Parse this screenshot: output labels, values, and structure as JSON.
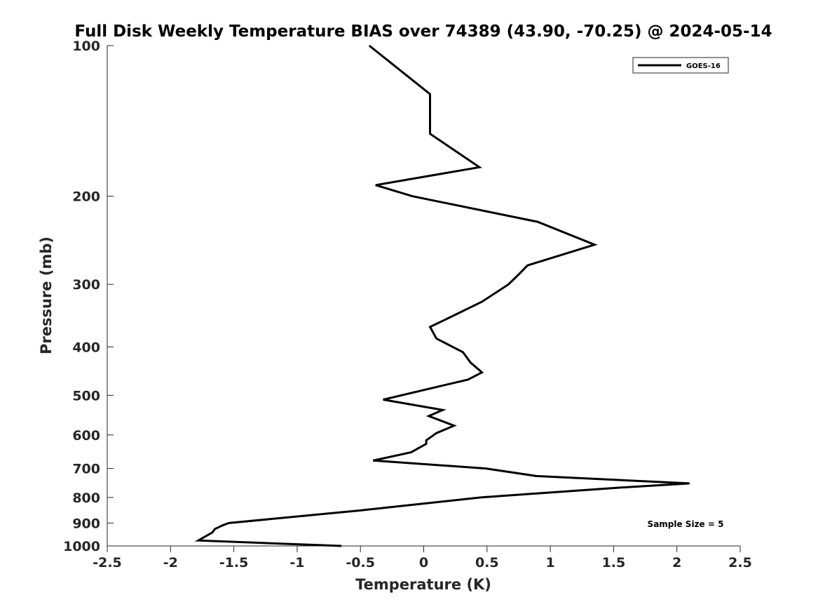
{
  "chart_data": {
    "type": "line",
    "title": "Full Disk Weekly Temperature BIAS over 74389 (43.90, -70.25) @ 2024-05-14",
    "xlabel": "Temperature (K)",
    "ylabel": "Pressure (mb)",
    "xlim": [
      -2.5,
      2.5
    ],
    "ylim": [
      100,
      1000
    ],
    "y_scale": "log",
    "y_reversed": true,
    "grid": false,
    "legend_position": "top-right",
    "xticks": [
      -2.5,
      -2,
      -1.5,
      -1,
      -0.5,
      0,
      0.5,
      1,
      1.5,
      2,
      2.5
    ],
    "xtick_labels": [
      "-2.5",
      "-2",
      "-1.5",
      "-1",
      "-0.5",
      "0",
      "0.5",
      "1",
      "1.5",
      "2",
      "2.5"
    ],
    "yticks": [
      100,
      200,
      300,
      400,
      500,
      600,
      700,
      800,
      900,
      1000
    ],
    "ytick_labels": [
      "100",
      "200",
      "300",
      "400",
      "500",
      "600",
      "700",
      "800",
      "900",
      "1000"
    ],
    "series": [
      {
        "name": "GOES-16",
        "color": "#000000",
        "points": [
          {
            "x": -0.43,
            "y": 100
          },
          {
            "x": 0.05,
            "y": 125
          },
          {
            "x": 0.05,
            "y": 150
          },
          {
            "x": 0.44,
            "y": 175
          },
          {
            "x": -0.38,
            "y": 190
          },
          {
            "x": -0.09,
            "y": 200
          },
          {
            "x": 0.9,
            "y": 225
          },
          {
            "x": 1.35,
            "y": 250
          },
          {
            "x": 0.82,
            "y": 275
          },
          {
            "x": 0.76,
            "y": 285
          },
          {
            "x": 0.67,
            "y": 300
          },
          {
            "x": 0.46,
            "y": 325
          },
          {
            "x": 0.2,
            "y": 350
          },
          {
            "x": 0.05,
            "y": 365
          },
          {
            "x": 0.1,
            "y": 385
          },
          {
            "x": 0.31,
            "y": 410
          },
          {
            "x": 0.37,
            "y": 430
          },
          {
            "x": 0.46,
            "y": 450
          },
          {
            "x": 0.35,
            "y": 465
          },
          {
            "x": -0.32,
            "y": 510
          },
          {
            "x": 0.15,
            "y": 535
          },
          {
            "x": 0.04,
            "y": 550
          },
          {
            "x": 0.24,
            "y": 575
          },
          {
            "x": 0.1,
            "y": 595
          },
          {
            "x": 0.02,
            "y": 615
          },
          {
            "x": 0.02,
            "y": 625
          },
          {
            "x": -0.1,
            "y": 650
          },
          {
            "x": -0.4,
            "y": 675
          },
          {
            "x": 0.49,
            "y": 700
          },
          {
            "x": 0.89,
            "y": 725
          },
          {
            "x": 2.1,
            "y": 750
          },
          {
            "x": 1.53,
            "y": 765
          },
          {
            "x": 0.91,
            "y": 785
          },
          {
            "x": 0.45,
            "y": 800
          },
          {
            "x": -0.52,
            "y": 850
          },
          {
            "x": -1.54,
            "y": 900
          },
          {
            "x": -1.59,
            "y": 910
          },
          {
            "x": -1.65,
            "y": 925
          },
          {
            "x": -1.67,
            "y": 940
          },
          {
            "x": -1.78,
            "y": 975
          },
          {
            "x": -0.65,
            "y": 1000
          }
        ]
      }
    ],
    "annotations": [
      {
        "text": "Sample Size = 5",
        "position": "bottom-right"
      }
    ]
  }
}
